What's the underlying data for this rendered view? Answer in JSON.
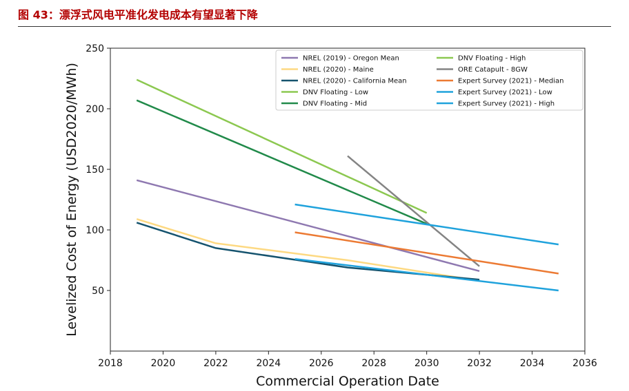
{
  "figure": {
    "title": "图 43：漂浮式风电平准化发电成本有望显著下降"
  },
  "chart_data": {
    "type": "line",
    "xlabel": "Commercial Operation Date",
    "ylabel": "Levelized Cost of Energy (USD2020/MWh)",
    "xlim": [
      2018,
      2036
    ],
    "ylim": [
      0,
      250
    ],
    "xticks": [
      2018,
      2020,
      2022,
      2024,
      2026,
      2028,
      2030,
      2032,
      2034,
      2036
    ],
    "yticks": [
      50,
      100,
      150,
      200,
      250
    ],
    "grid": false,
    "legend_position": "top-right",
    "series": [
      {
        "name": "NREL (2019) - Oregon Mean",
        "color": "#8e78b0",
        "points": [
          [
            2019,
            141
          ],
          [
            2032,
            66
          ]
        ]
      },
      {
        "name": "NREL (2020) - Maine",
        "color": "#fdd982",
        "points": [
          [
            2019,
            109
          ],
          [
            2022,
            89
          ],
          [
            2027,
            75
          ],
          [
            2032,
            58
          ]
        ]
      },
      {
        "name": "NREL (2020) - California Mean",
        "color": "#15536e",
        "points": [
          [
            2019,
            106
          ],
          [
            2022,
            85
          ],
          [
            2027,
            69
          ],
          [
            2032,
            59
          ]
        ]
      },
      {
        "name": "DNV Floating - Low",
        "color": "#8cc850",
        "points": [
          [
            2019,
            224
          ],
          [
            2030,
            114
          ]
        ]
      },
      {
        "name": "DNV Floating - Mid",
        "color": "#218a4a",
        "points": [
          [
            2019,
            207
          ],
          [
            2030,
            105
          ]
        ]
      },
      {
        "name": "DNV Floating - High",
        "color": "#8cc850",
        "points": []
      },
      {
        "name": "ORE Catapult - 8GW",
        "color": "#848484",
        "points": [
          [
            2027,
            161
          ],
          [
            2032,
            70
          ]
        ]
      },
      {
        "name": "Expert Survey (2021) - Median",
        "color": "#ec7a33",
        "points": [
          [
            2025,
            98
          ],
          [
            2035,
            64
          ]
        ]
      },
      {
        "name": "Expert Survey (2021) - Low",
        "color": "#1fa2dc",
        "points": [
          [
            2025,
            76
          ],
          [
            2035,
            50
          ]
        ]
      },
      {
        "name": "Expert Survey (2021) - High",
        "color": "#1fa2dc",
        "points": [
          [
            2025,
            121
          ],
          [
            2035,
            88
          ]
        ]
      }
    ]
  }
}
